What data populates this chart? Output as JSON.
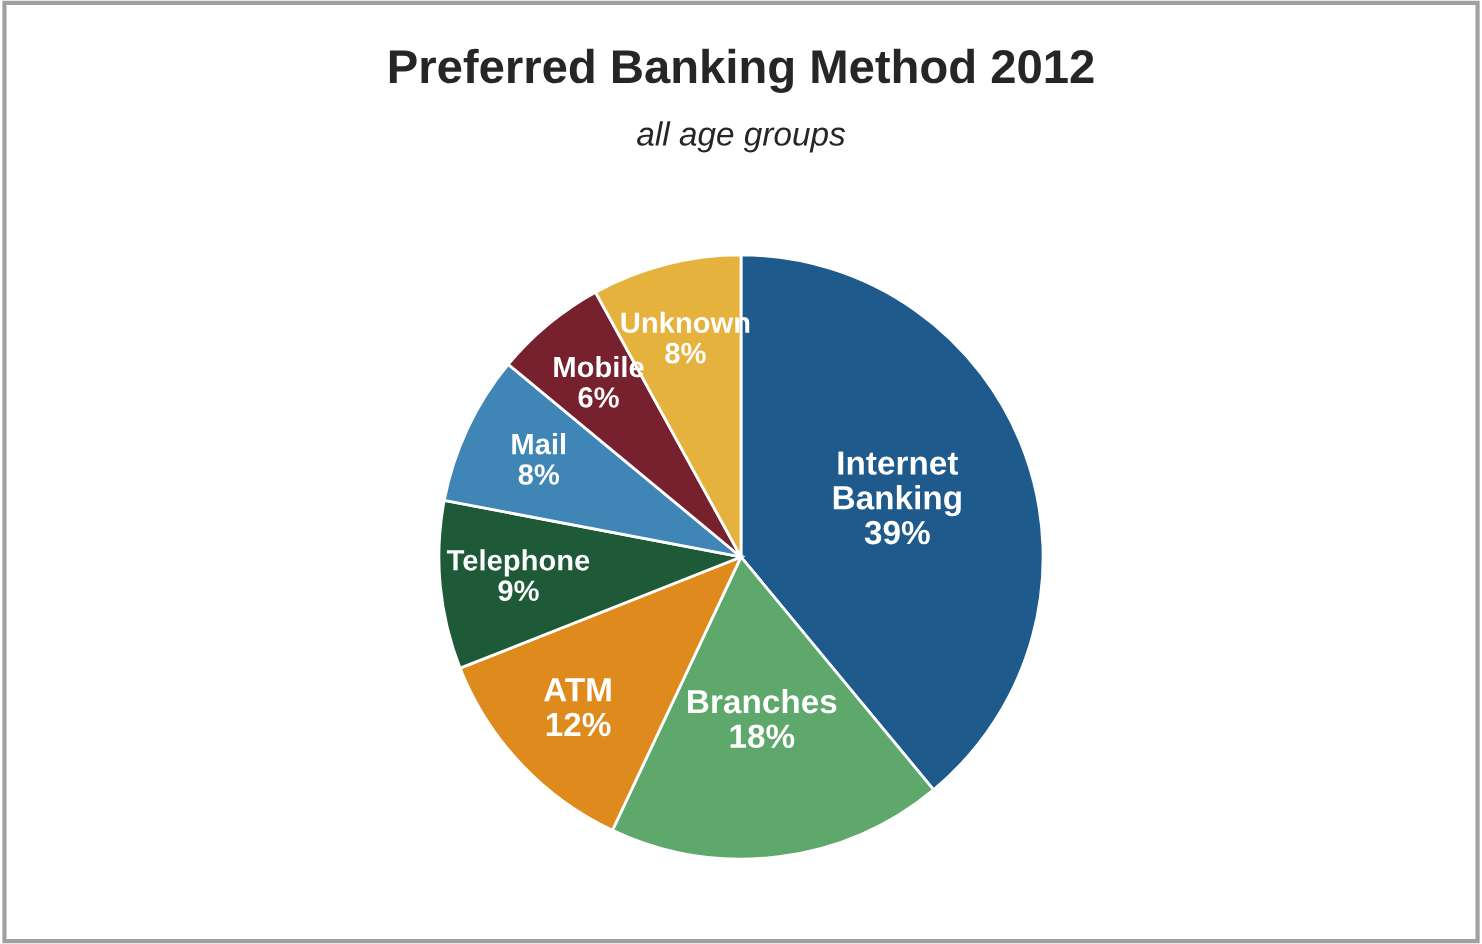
{
  "chart_data": {
    "type": "pie",
    "title": "Preferred Banking Method 2012",
    "subtitle": "all age groups",
    "categories": [
      "Internet Banking",
      "Branches",
      "ATM",
      "Telephone",
      "Mail",
      "Mobile",
      "Unknown"
    ],
    "values": [
      39,
      18,
      12,
      9,
      8,
      6,
      8
    ],
    "value_labels": [
      "39%",
      "18%",
      "12%",
      "9%",
      "8%",
      "6%",
      "8%"
    ],
    "colors": [
      "#1e5a8c",
      "#5ea86c",
      "#de8a1c",
      "#1f5a38",
      "#3f86b6",
      "#77212f",
      "#e6b23e"
    ],
    "legend": false
  }
}
